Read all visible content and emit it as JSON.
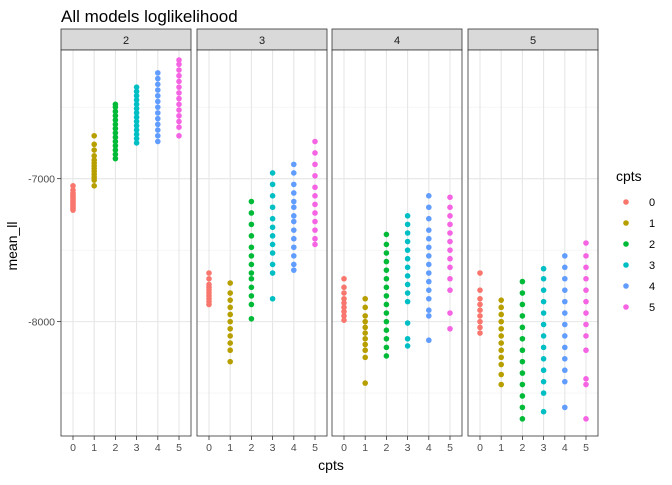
{
  "chart_data": {
    "type": "scatter",
    "title": "All models loglikelihood",
    "xlabel": "cpts",
    "ylabel": "mean_ll",
    "facet_labels": [
      "2",
      "3",
      "4",
      "5"
    ],
    "x_categories": [
      "0",
      "1",
      "2",
      "3",
      "4",
      "5"
    ],
    "ylim": [
      -8800,
      -6100
    ],
    "y_ticks": [
      -7000,
      -8000
    ],
    "y_tick_labels": [
      "-7000",
      "-8000"
    ],
    "grid": true,
    "legend": {
      "title": "cpts",
      "placement": "right",
      "entries": [
        "0",
        "1",
        "2",
        "3",
        "4",
        "5"
      ]
    },
    "colors": [
      "#F8766D",
      "#B79F00",
      "#00BA38",
      "#00BFC4",
      "#619CFF",
      "#F564E3"
    ],
    "panels": [
      {
        "facet": "2",
        "points": [
          [
            -7050,
            -7080,
            -7100,
            -7110,
            -7120,
            -7130,
            -7140,
            -7150,
            -7160,
            -7170,
            -7180,
            -7190,
            -7200,
            -7210,
            -7220
          ],
          [
            -6700,
            -6760,
            -6800,
            -6840,
            -6870,
            -6890,
            -6910,
            -6930,
            -6950,
            -6970,
            -6990,
            -7010,
            -7050
          ],
          [
            -6480,
            -6500,
            -6530,
            -6560,
            -6590,
            -6620,
            -6650,
            -6680,
            -6710,
            -6740,
            -6770,
            -6800,
            -6830,
            -6860
          ],
          [
            -6360,
            -6390,
            -6420,
            -6450,
            -6480,
            -6510,
            -6540,
            -6570,
            -6600,
            -6630,
            -6660,
            -6690,
            -6720,
            -6750
          ],
          [
            -6260,
            -6300,
            -6340,
            -6380,
            -6420,
            -6460,
            -6500,
            -6540,
            -6580,
            -6620,
            -6660,
            -6700,
            -6740
          ],
          [
            -6170,
            -6200,
            -6240,
            -6280,
            -6320,
            -6360,
            -6400,
            -6440,
            -6480,
            -6520,
            -6560,
            -6600,
            -6640,
            -6700
          ]
        ]
      },
      {
        "facet": "3",
        "points": [
          [
            -7660,
            -7700,
            -7740,
            -7760,
            -7780,
            -7800,
            -7820,
            -7840,
            -7860,
            -7880
          ],
          [
            -7730,
            -7800,
            -7850,
            -7900,
            -7950,
            -8000,
            -8050,
            -8100,
            -8150,
            -8200,
            -8280
          ],
          [
            -7160,
            -7240,
            -7320,
            -7400,
            -7480,
            -7540,
            -7600,
            -7660,
            -7700,
            -7760,
            -7820,
            -7880,
            -7980
          ],
          [
            -6960,
            -7040,
            -7120,
            -7200,
            -7280,
            -7340,
            -7400,
            -7460,
            -7520,
            -7600,
            -7660,
            -7840
          ],
          [
            -6900,
            -6960,
            -7040,
            -7100,
            -7160,
            -7200,
            -7260,
            -7300,
            -7360,
            -7420,
            -7480,
            -7540,
            -7600,
            -7640
          ],
          [
            -6740,
            -6820,
            -6900,
            -6980,
            -7060,
            -7120,
            -7180,
            -7240,
            -7300,
            -7360,
            -7420,
            -7460
          ]
        ]
      },
      {
        "facet": "4",
        "points": [
          [
            -7700,
            -7760,
            -7800,
            -7840,
            -7870,
            -7900,
            -7930,
            -7960,
            -7990
          ],
          [
            -7840,
            -7900,
            -7960,
            -8000,
            -8040,
            -8080,
            -8120,
            -8160,
            -8200,
            -8250,
            -8430
          ],
          [
            -7390,
            -7460,
            -7520,
            -7580,
            -7640,
            -7700,
            -7760,
            -7820,
            -7880,
            -7940,
            -8000,
            -8060,
            -8120,
            -8180,
            -8240
          ],
          [
            -7260,
            -7320,
            -7380,
            -7440,
            -7500,
            -7560,
            -7620,
            -7680,
            -7740,
            -7800,
            -7860,
            -8010,
            -8120,
            -8170
          ],
          [
            -7120,
            -7200,
            -7280,
            -7360,
            -7420,
            -7480,
            -7540,
            -7600,
            -7660,
            -7720,
            -7780,
            -7840,
            -7920,
            -7960,
            -8130
          ],
          [
            -7130,
            -7200,
            -7260,
            -7320,
            -7380,
            -7440,
            -7500,
            -7560,
            -7620,
            -7700,
            -7780,
            -7940,
            -8050
          ]
        ]
      },
      {
        "facet": "5",
        "points": [
          [
            -7660,
            -7780,
            -7840,
            -7880,
            -7920,
            -7960,
            -8000,
            -8040,
            -8080
          ],
          [
            -7850,
            -7900,
            -7950,
            -8000,
            -8050,
            -8100,
            -8150,
            -8200,
            -8250,
            -8300,
            -8370,
            -8440
          ],
          [
            -7720,
            -7800,
            -7880,
            -7960,
            -8040,
            -8120,
            -8200,
            -8280,
            -8360,
            -8440,
            -8520,
            -8600,
            -8680
          ],
          [
            -7630,
            -7700,
            -7780,
            -7860,
            -7940,
            -8020,
            -8100,
            -8180,
            -8260,
            -8340,
            -8420,
            -8500,
            -8630
          ],
          [
            -7540,
            -7620,
            -7700,
            -7780,
            -7860,
            -7940,
            -8020,
            -8100,
            -8180,
            -8260,
            -8340,
            -8420,
            -8600
          ],
          [
            -7450,
            -7540,
            -7620,
            -7700,
            -7780,
            -7860,
            -7940,
            -8020,
            -8100,
            -8200,
            -8400,
            -8440,
            -8680
          ]
        ]
      }
    ]
  }
}
